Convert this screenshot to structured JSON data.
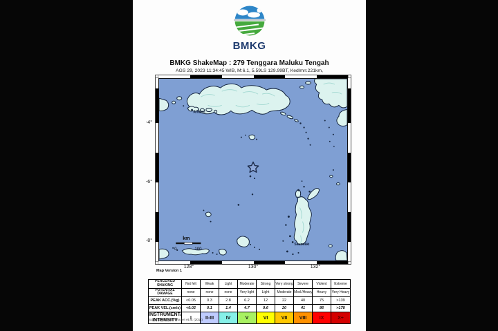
{
  "page": {
    "brand": "BMKG",
    "title": "BMKG ShakeMap : 279 Tenggara Maluku Tengah",
    "subtitle": "AGS 29, 2023 11:34:45 WIB, M:6.1, 5.59LS 129.99BT, Kedlmn:221km,",
    "footnote": "Scale based upon Worden et al. (2011)"
  },
  "map": {
    "version_note": "Map Version 1",
    "epicenter_symbol": "star",
    "cities": [
      {
        "name": "Ambon"
      },
      {
        "name": "Saumlaki"
      }
    ],
    "scale_bar": {
      "unit": "km",
      "min": "0",
      "max": "100"
    },
    "y_axis_ticks": [
      "-4°",
      "-6°",
      "-8°"
    ],
    "x_axis_ticks": [
      "128°",
      "130°",
      "132°"
    ],
    "colors": {
      "sea": "#7f9fd3",
      "land": "#dcf3ef",
      "coastline": "#172741"
    }
  },
  "legend_table": {
    "rows": [
      {
        "label": "PERCEIVED SHAKING",
        "cells": [
          "Not felt",
          "Weak",
          "Light",
          "Moderate",
          "Strong",
          "Very strong",
          "Severe",
          "Violent",
          "Extreme"
        ]
      },
      {
        "label": "POTENTIAL DAMAGE",
        "cells": [
          "none",
          "none",
          "none",
          "Very light",
          "Light",
          "Moderate",
          "Mod./Heavy",
          "Heavy",
          "Very Heavy"
        ]
      },
      {
        "label": "PEAK ACC.(%g)",
        "cells": [
          "<0.05",
          "0.3",
          "2.8",
          "6.2",
          "12",
          "22",
          "40",
          "75",
          ">139"
        ]
      },
      {
        "label": "PEAK VEL.(cm/s)",
        "cells": [
          "<0.02",
          "0.1",
          "1.4",
          "4.7",
          "9.6",
          "20",
          "41",
          "86",
          ">178"
        ]
      },
      {
        "label": "INSTRUMENTAL INTENSITY",
        "cells": [
          "I",
          "II-III",
          "IV",
          "V",
          "VI",
          "VII",
          "VIII",
          "IX",
          "X+"
        ]
      }
    ],
    "intensity_colors": [
      "#ffffff",
      "#bfccff",
      "#86f0e8",
      "#a8f162",
      "#ffff00",
      "#ffc800",
      "#ff9100",
      "#ff0000",
      "#d40000"
    ]
  }
}
